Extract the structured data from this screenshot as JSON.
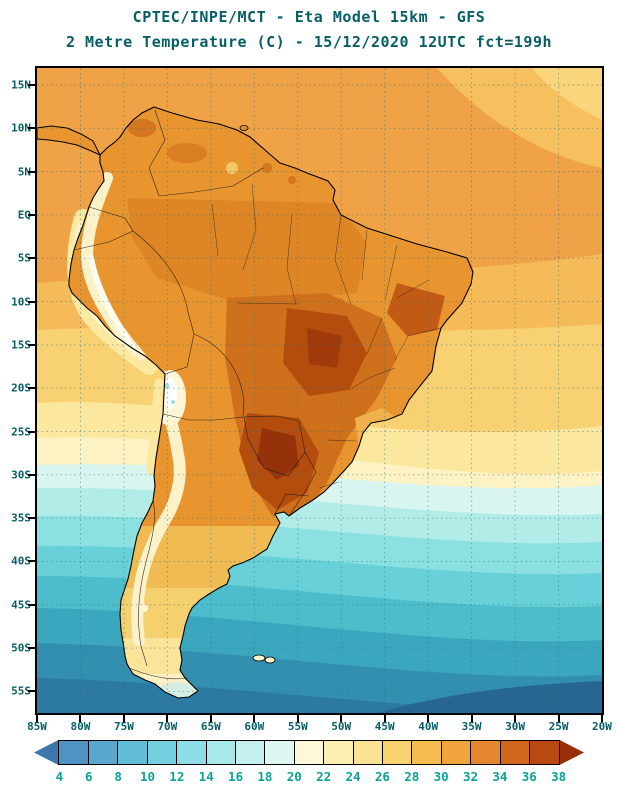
{
  "title": {
    "line1": "CPTEC/INPE/MCT -  Eta Model 15km - GFS",
    "line2": "2 Metre Temperature (C) - 15/12/2020 12UTC fct=199h"
  },
  "map": {
    "lat_labels": [
      "15N",
      "10N",
      "5N",
      "EQ",
      "5S",
      "10S",
      "15S",
      "20S",
      "25S",
      "30S",
      "35S",
      "40S",
      "45S",
      "50S",
      "55S"
    ],
    "lon_labels": [
      "85W",
      "80W",
      "75W",
      "70W",
      "65W",
      "60W",
      "55W",
      "50W",
      "45W",
      "40W",
      "35W",
      "30W",
      "25W",
      "20W"
    ]
  },
  "colorbar": {
    "tick_labels": [
      "4",
      "6",
      "8",
      "10",
      "12",
      "14",
      "16",
      "18",
      "20",
      "22",
      "24",
      "26",
      "28",
      "30",
      "32",
      "34",
      "36",
      "38"
    ],
    "segment_colors": [
      "#3b77ad",
      "#4f93c4",
      "#5aa8cd",
      "#62bed8",
      "#74cfdf",
      "#8edde6",
      "#a8e8ea",
      "#c3f0ef",
      "#ddf7f3",
      "#fdf8d8",
      "#fdeeb2",
      "#fbe292",
      "#f8d26e",
      "#f5bd50",
      "#efa43e",
      "#e4862e",
      "#d2661f",
      "#b94811",
      "#97300a"
    ],
    "tick_label_color": "#0aa396"
  },
  "colors": {
    "title_text": "#075e66",
    "axis_text": "#075e66",
    "grid_line": "#2f6f7c",
    "map_frame": "#000000"
  }
}
